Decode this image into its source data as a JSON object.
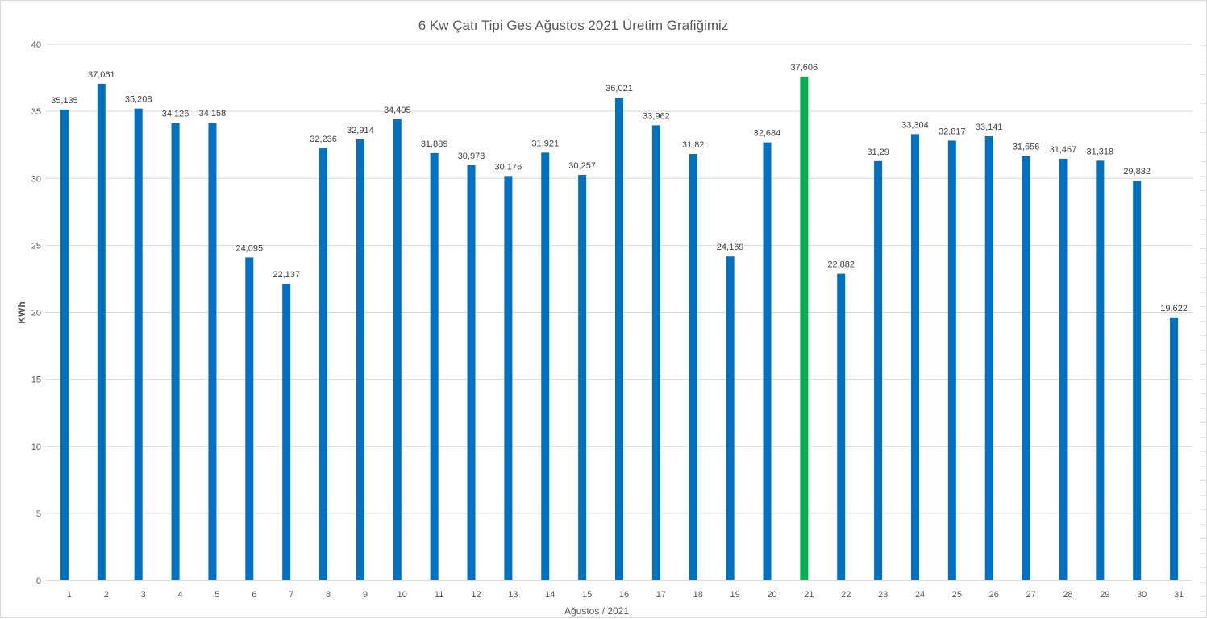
{
  "chart_data": {
    "type": "bar",
    "title": "6 Kw Çatı Tipi Ges Ağustos 2021 Üretim Grafiğimiz",
    "xlabel": "Ağustos / 2021",
    "ylabel": "KWh",
    "ylim": [
      0,
      40
    ],
    "yticks": [
      0,
      5,
      10,
      15,
      20,
      25,
      30,
      35,
      40
    ],
    "grid": true,
    "categories": [
      "1",
      "2",
      "3",
      "4",
      "5",
      "6",
      "7",
      "8",
      "9",
      "10",
      "11",
      "12",
      "13",
      "14",
      "15",
      "16",
      "17",
      "18",
      "19",
      "20",
      "21",
      "22",
      "23",
      "24",
      "25",
      "26",
      "27",
      "28",
      "29",
      "30",
      "31"
    ],
    "values": [
      35.135,
      37.061,
      35.208,
      34.126,
      34.158,
      24.095,
      22.137,
      32.236,
      32.914,
      34.405,
      31.889,
      30.973,
      30.176,
      31.921,
      30.257,
      36.021,
      33.962,
      31.82,
      24.169,
      32.684,
      37.606,
      22.882,
      31.29,
      33.304,
      32.817,
      33.141,
      31.656,
      31.467,
      31.318,
      29.832,
      19.622
    ],
    "data_labels": [
      "35,135",
      "37,061",
      "35,208",
      "34,126",
      "34,158",
      "24,095",
      "22,137",
      "32,236",
      "32,914",
      "34,405",
      "31,889",
      "30,973",
      "30,176",
      "31,921",
      "30,257",
      "36,021",
      "33,962",
      "31,82",
      "24,169",
      "32,684",
      "37,606",
      "22,882",
      "31,29",
      "33,304",
      "32,817",
      "33,141",
      "31,656",
      "31,467",
      "31,318",
      "29,832",
      "19,622"
    ],
    "colors": {
      "bar": "#0070c0",
      "highlight": "#00b050"
    },
    "highlight_index": 20
  }
}
